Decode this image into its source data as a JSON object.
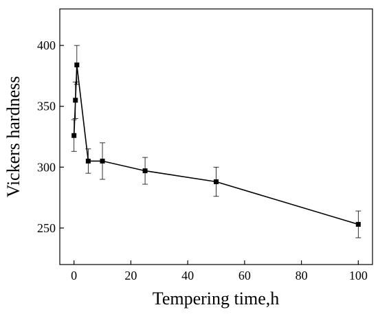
{
  "chart_data": {
    "type": "line",
    "xlabel": "Tempering time,h",
    "ylabel": "Vickers hardness",
    "xlim": [
      -5,
      105
    ],
    "ylim": [
      220,
      430
    ],
    "xticks": [
      0,
      20,
      40,
      60,
      80,
      100
    ],
    "yticks": [
      250,
      300,
      350,
      400
    ],
    "grid": false,
    "legend": "none",
    "series": [
      {
        "marker": "square",
        "color": "#000000",
        "x": [
          0,
          0.5,
          1,
          5,
          10,
          25,
          50,
          100
        ],
        "y": [
          326,
          355,
          384,
          305,
          305,
          297,
          288,
          253
        ],
        "error": [
          13,
          15,
          16,
          10,
          15,
          11,
          12,
          11
        ]
      }
    ]
  }
}
